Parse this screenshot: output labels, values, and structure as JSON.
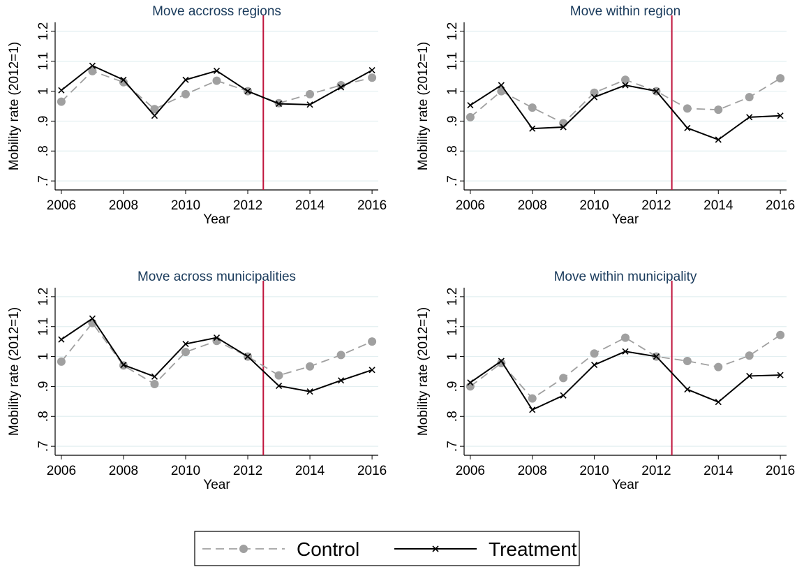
{
  "chart_data": [
    {
      "type": "line",
      "title": "Move accross regions",
      "xlabel": "Year",
      "ylabel": "Mobility rate (2012=1)",
      "x": [
        2006,
        2007,
        2008,
        2009,
        2010,
        2011,
        2012,
        2013,
        2014,
        2015,
        2016
      ],
      "series": [
        {
          "name": "Control",
          "color": "#a0a0a0",
          "dashed": true,
          "marker": "circle",
          "values": [
            0.965,
            1.067,
            1.03,
            0.94,
            0.99,
            1.035,
            1.0,
            0.96,
            0.99,
            1.02,
            1.045
          ]
        },
        {
          "name": "Treatment",
          "color": "#000000",
          "dashed": false,
          "marker": "x",
          "values": [
            1.003,
            1.085,
            1.038,
            0.918,
            1.038,
            1.068,
            1.0,
            0.958,
            0.955,
            1.013,
            1.07
          ]
        }
      ],
      "xlim": [
        2005.8,
        2016.2
      ],
      "ylim": [
        0.67,
        1.23
      ],
      "xticks": [
        2006,
        2008,
        2010,
        2012,
        2014,
        2016
      ],
      "yticks": [
        {
          "value": 0.7,
          "label": ".7"
        },
        {
          "value": 0.8,
          "label": ".8"
        },
        {
          "value": 0.9,
          "label": ".9"
        },
        1,
        1.1,
        1.2
      ],
      "grid": true,
      "vline": 2012.5,
      "vline_color": "#c0143c"
    },
    {
      "type": "line",
      "title": "Move within region",
      "xlabel": "Year",
      "ylabel": "Mobility rate (2012=1)",
      "x": [
        2006,
        2007,
        2008,
        2009,
        2010,
        2011,
        2012,
        2013,
        2014,
        2015,
        2016
      ],
      "series": [
        {
          "name": "Control",
          "color": "#a0a0a0",
          "dashed": true,
          "marker": "circle",
          "values": [
            0.913,
            1.0,
            0.945,
            0.893,
            0.995,
            1.038,
            1.0,
            0.942,
            0.938,
            0.98,
            1.043
          ]
        },
        {
          "name": "Treatment",
          "color": "#000000",
          "dashed": false,
          "marker": "x",
          "values": [
            0.953,
            1.02,
            0.875,
            0.88,
            0.98,
            1.02,
            1.0,
            0.877,
            0.838,
            0.913,
            0.918
          ]
        }
      ],
      "xlim": [
        2005.8,
        2016.2
      ],
      "ylim": [
        0.67,
        1.23
      ],
      "xticks": [
        2006,
        2008,
        2010,
        2012,
        2014,
        2016
      ],
      "yticks": [
        {
          "value": 0.7,
          "label": ".7"
        },
        {
          "value": 0.8,
          "label": ".8"
        },
        {
          "value": 0.9,
          "label": ".9"
        },
        1,
        1.1,
        1.2
      ],
      "grid": true,
      "vline": 2012.5,
      "vline_color": "#c0143c"
    },
    {
      "type": "line",
      "title": "Move across municipalities",
      "xlabel": "Year",
      "ylabel": "Mobility rate (2012=1)",
      "x": [
        2006,
        2007,
        2008,
        2009,
        2010,
        2011,
        2012,
        2013,
        2014,
        2015,
        2016
      ],
      "series": [
        {
          "name": "Control",
          "color": "#a0a0a0",
          "dashed": true,
          "marker": "circle",
          "values": [
            0.983,
            1.112,
            0.97,
            0.908,
            1.015,
            1.052,
            1.0,
            0.937,
            0.967,
            1.005,
            1.05
          ]
        },
        {
          "name": "Treatment",
          "color": "#000000",
          "dashed": false,
          "marker": "x",
          "values": [
            1.057,
            1.127,
            0.972,
            0.933,
            1.042,
            1.063,
            1.0,
            0.902,
            0.883,
            0.92,
            0.955
          ]
        }
      ],
      "xlim": [
        2005.8,
        2016.2
      ],
      "ylim": [
        0.67,
        1.23
      ],
      "xticks": [
        2006,
        2008,
        2010,
        2012,
        2014,
        2016
      ],
      "yticks": [
        {
          "value": 0.7,
          "label": ".7"
        },
        {
          "value": 0.8,
          "label": ".8"
        },
        {
          "value": 0.9,
          "label": ".9"
        },
        1,
        1.1,
        1.2
      ],
      "grid": true,
      "vline": 2012.5,
      "vline_color": "#c0143c"
    },
    {
      "type": "line",
      "title": "Move within municipality",
      "xlabel": "Year",
      "ylabel": "Mobility rate (2012=1)",
      "x": [
        2006,
        2007,
        2008,
        2009,
        2010,
        2011,
        2012,
        2013,
        2014,
        2015,
        2016
      ],
      "series": [
        {
          "name": "Control",
          "color": "#a0a0a0",
          "dashed": true,
          "marker": "circle",
          "values": [
            0.9,
            0.978,
            0.86,
            0.928,
            1.01,
            1.063,
            1.0,
            0.985,
            0.965,
            1.003,
            1.072
          ]
        },
        {
          "name": "Treatment",
          "color": "#000000",
          "dashed": false,
          "marker": "x",
          "values": [
            0.913,
            0.985,
            0.822,
            0.87,
            0.972,
            1.017,
            1.0,
            0.89,
            0.848,
            0.935,
            0.938
          ]
        }
      ],
      "xlim": [
        2005.8,
        2016.2
      ],
      "ylim": [
        0.67,
        1.23
      ],
      "xticks": [
        2006,
        2008,
        2010,
        2012,
        2014,
        2016
      ],
      "yticks": [
        {
          "value": 0.7,
          "label": ".7"
        },
        {
          "value": 0.8,
          "label": ".8"
        },
        {
          "value": 0.9,
          "label": ".9"
        },
        1,
        1.1,
        1.2
      ],
      "grid": true,
      "vline": 2012.5,
      "vline_color": "#c0143c"
    }
  ]
}
